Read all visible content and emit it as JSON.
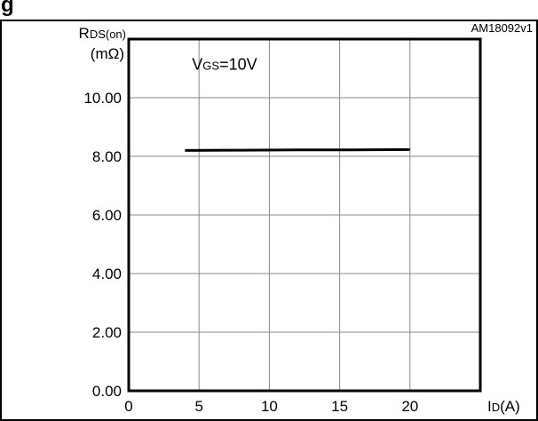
{
  "header": {
    "title_fragment": "g"
  },
  "figure_tag": "AM18092v1",
  "chart_data": {
    "type": "line",
    "ylabel_main": "R",
    "ylabel_sub": "DS(on)",
    "yunit": "(mΩ)",
    "xlabel_main": "I",
    "xlabel_sub": "D",
    "xunit": "(A)",
    "annotation_main": "V",
    "annotation_sub": "GS",
    "annotation_value": "=10V",
    "xlim": [
      0,
      25
    ],
    "ylim": [
      0,
      12
    ],
    "xticks": [
      0,
      5,
      10,
      15,
      20
    ],
    "xtick_labels": [
      "0",
      "5",
      "10",
      "15",
      "20"
    ],
    "yticks": [
      0,
      2,
      4,
      6,
      8,
      10
    ],
    "ytick_labels": [
      "0.00",
      "2.00",
      "4.00",
      "6.00",
      "8.00",
      "10.00"
    ],
    "grid": true,
    "series": [
      {
        "x": [
          4,
          8,
          12,
          16,
          20
        ],
        "y": [
          8.2,
          8.21,
          8.22,
          8.22,
          8.23
        ]
      }
    ]
  }
}
